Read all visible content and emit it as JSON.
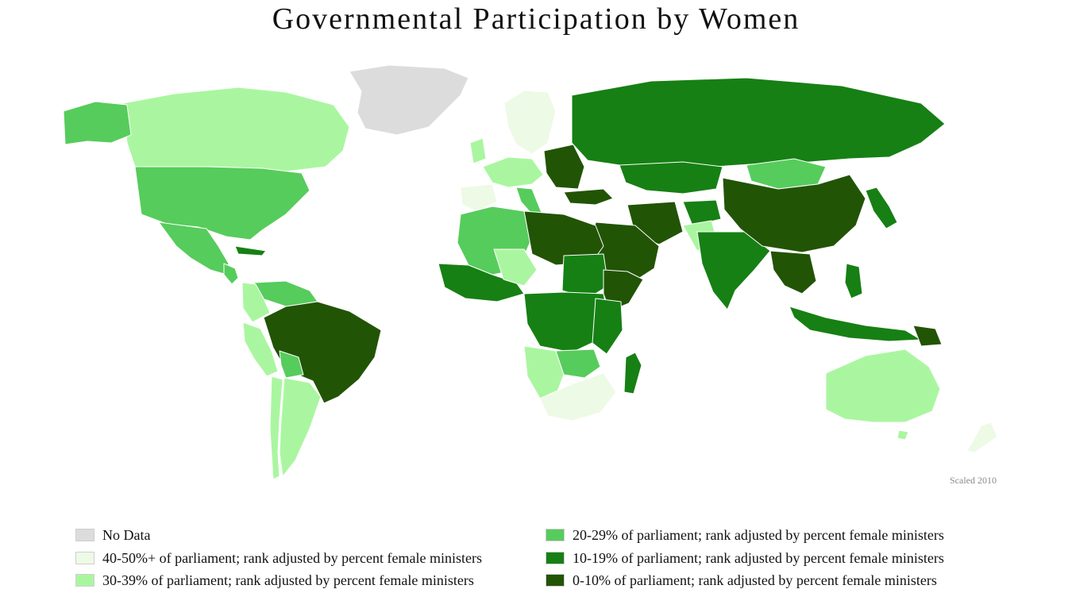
{
  "title": "Governmental Participation by Women",
  "note": "Scaled 2010",
  "colors": {
    "no_data": "#dcdcdc",
    "c40_50": "#edfae6",
    "c30_39": "#aaf6a0",
    "c20_29": "#56cc5c",
    "c10_19": "#168014",
    "c0_10": "#225405",
    "border": "#ffffff"
  },
  "legend": {
    "no_data": "No Data",
    "c40_50": "40-50%+ of parliament; rank adjusted by percent female ministers",
    "c30_39": "30-39% of parliament; rank adjusted by percent female ministers",
    "c20_29": "20-29% of parliament; rank adjusted by percent female ministers",
    "c10_19": "10-19% of parliament; rank adjusted by percent female ministers",
    "c0_10": "0-10% of parliament; rank adjusted by percent female ministers"
  }
}
